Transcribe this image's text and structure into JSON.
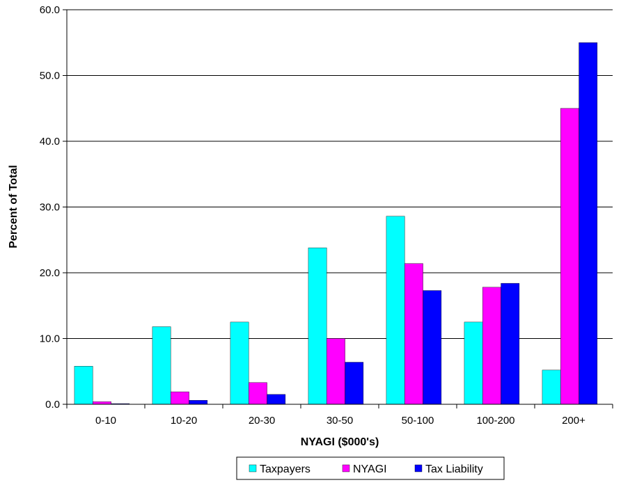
{
  "chart_data": {
    "type": "bar",
    "title": "",
    "xlabel": "NYAGI ($000's)",
    "ylabel": "Percent of Total",
    "ylim": [
      0,
      60
    ],
    "yticks": [
      "0.0",
      "10.0",
      "20.0",
      "30.0",
      "40.0",
      "50.0",
      "60.0"
    ],
    "ytick_values": [
      0,
      10,
      20,
      30,
      40,
      50,
      60
    ],
    "categories": [
      "0-10",
      "10-20",
      "20-30",
      "30-50",
      "50-100",
      "100-200",
      "200+"
    ],
    "series": [
      {
        "name": "Taxpayers",
        "color": "#00FFFF",
        "values": [
          5.8,
          11.8,
          12.5,
          23.8,
          28.6,
          12.5,
          5.2
        ]
      },
      {
        "name": "NYAGI",
        "color": "#FF00FF",
        "values": [
          0.4,
          1.9,
          3.3,
          10.0,
          21.4,
          17.8,
          45.0
        ]
      },
      {
        "name": "Tax Liability",
        "color": "#0000FF",
        "values": [
          0.1,
          0.6,
          1.5,
          6.4,
          17.3,
          18.4,
          55.0
        ]
      }
    ],
    "grid": true,
    "legend_position": "bottom"
  }
}
